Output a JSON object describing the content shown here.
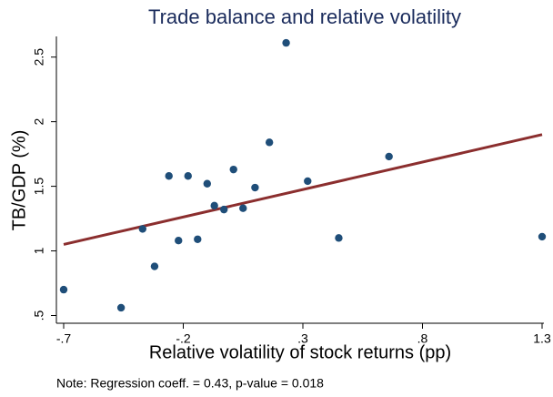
{
  "chart_data": {
    "type": "scatter",
    "title": "Trade balance and relative volatility",
    "x_label": "Relative volatility of stock returns (pp)",
    "y_label": "TB/GDP (%)",
    "note": "Note: Regression coeff. = 0.43, p-value = 0.018",
    "x": [
      -0.7,
      -0.46,
      -0.37,
      -0.32,
      -0.26,
      -0.22,
      -0.18,
      -0.14,
      -0.1,
      -0.07,
      -0.03,
      0.01,
      0.05,
      0.1,
      0.16,
      0.23,
      0.32,
      0.45,
      0.66,
      1.3
    ],
    "values": [
      0.7,
      0.56,
      1.17,
      0.88,
      1.58,
      1.08,
      1.58,
      1.09,
      1.52,
      1.35,
      1.32,
      1.63,
      1.33,
      1.49,
      1.84,
      2.61,
      1.54,
      1.1,
      1.73,
      1.11
    ],
    "color": "#1f4e79",
    "fit_line": {
      "x": [
        -0.7,
        1.3
      ],
      "y": [
        1.05,
        1.9
      ],
      "color": "#8b2e2e"
    },
    "xlim": [
      -0.7,
      1.3
    ],
    "ylim": [
      0.44,
      2.66
    ],
    "xticks": [
      {
        "value": -0.7,
        "label": "-.7"
      },
      {
        "value": -0.2,
        "label": "-.2"
      },
      {
        "value": 0.3,
        "label": ".3"
      },
      {
        "value": 0.8,
        "label": ".8"
      },
      1.3
    ],
    "yticks": [
      {
        "value": 0.5,
        "label": ".5"
      },
      1,
      1.5,
      2,
      2.5
    ]
  }
}
